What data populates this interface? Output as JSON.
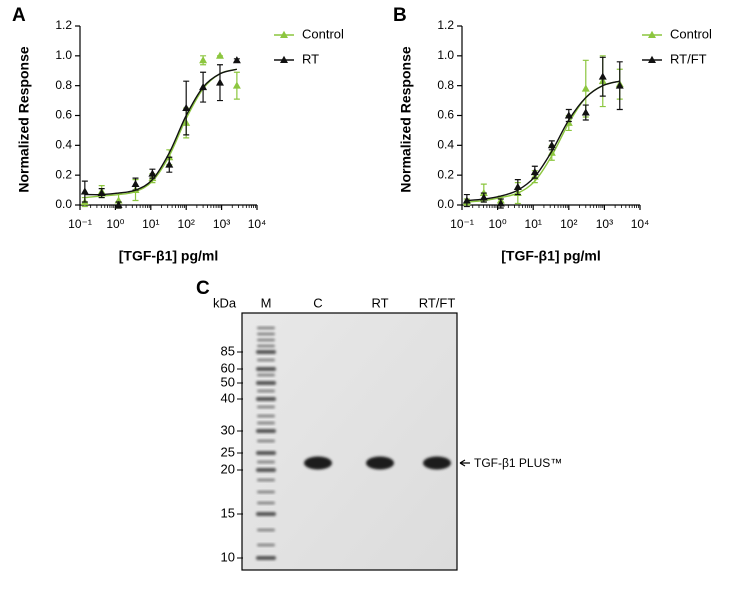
{
  "chart_data": [
    {
      "type": "line",
      "panel_label": "A",
      "x_label": "[TGF-β1] pg/ml",
      "y_label": "Normalized Response",
      "log_x": true,
      "x": [
        0.137,
        0.41,
        1.23,
        3.7,
        11.1,
        33.3,
        100,
        300,
        900,
        2700
      ],
      "xlim": [
        0.1,
        10000
      ],
      "xticks": [
        {
          "value": 0.1,
          "label": "10⁻¹"
        },
        {
          "value": 1,
          "label": "10⁰"
        },
        {
          "value": 10,
          "label": "10¹"
        },
        {
          "value": 100,
          "label": "10²"
        },
        {
          "value": 1000,
          "label": "10³"
        },
        {
          "value": 10000,
          "label": "10⁴"
        }
      ],
      "ylim": [
        0,
        1.2
      ],
      "yticks": [
        {
          "value": 0,
          "label": "0.0"
        },
        0.2,
        0.4,
        0.6,
        0.8,
        {
          "value": 1,
          "label": "1.0"
        },
        1.2
      ],
      "series": [
        {
          "name": "Control",
          "color": "#8cc63f",
          "values": [
            0.02,
            0.09,
            0.03,
            0.1,
            0.18,
            0.32,
            0.55,
            0.97,
            1.0,
            0.8
          ],
          "errors": [
            0.03,
            0.04,
            0.05,
            0.07,
            0.03,
            0.05,
            0.1,
            0.03,
            0,
            0.09
          ],
          "fit": [
            0.05,
            0.06,
            0.07,
            0.09,
            0.16,
            0.33,
            0.58,
            0.78,
            0.88,
            0.91
          ]
        },
        {
          "name": "RT",
          "color": "#111111",
          "values": [
            0.09,
            0.08,
            0.0,
            0.14,
            0.21,
            0.27,
            0.65,
            0.79,
            0.82,
            0.97
          ],
          "errors": [
            0.07,
            0.03,
            0.02,
            0.04,
            0.03,
            0.05,
            0.18,
            0.1,
            0.12,
            0.01
          ],
          "fit": [
            0.07,
            0.07,
            0.08,
            0.1,
            0.17,
            0.35,
            0.6,
            0.79,
            0.88,
            0.91
          ]
        }
      ]
    },
    {
      "type": "line",
      "panel_label": "B",
      "x_label": "[TGF-β1] pg/ml",
      "y_label": "Normalized Response",
      "log_x": true,
      "x": [
        0.137,
        0.41,
        1.23,
        3.7,
        11.1,
        33.3,
        100,
        300,
        900,
        2700
      ],
      "xlim": [
        0.1,
        10000
      ],
      "xticks": [
        {
          "value": 0.1,
          "label": "10⁻¹"
        },
        {
          "value": 1,
          "label": "10⁰"
        },
        {
          "value": 10,
          "label": "10¹"
        },
        {
          "value": 100,
          "label": "10²"
        },
        {
          "value": 1000,
          "label": "10³"
        },
        {
          "value": 10000,
          "label": "10⁴"
        }
      ],
      "ylim": [
        0,
        1.2
      ],
      "yticks": [
        {
          "value": 0,
          "label": "0.0"
        },
        0.2,
        0.4,
        0.6,
        0.8,
        {
          "value": 1,
          "label": "1.0"
        },
        1.2
      ],
      "series": [
        {
          "name": "Control",
          "color": "#8cc63f",
          "values": [
            0.02,
            0.08,
            0.03,
            0.08,
            0.19,
            0.35,
            0.55,
            0.78,
            0.83,
            0.81
          ],
          "errors": [
            0.02,
            0.06,
            0.03,
            0.07,
            0.04,
            0.05,
            0.05,
            0.19,
            0.17,
            0.1
          ],
          "fit": [
            0.02,
            0.03,
            0.05,
            0.08,
            0.16,
            0.33,
            0.55,
            0.72,
            0.8,
            0.83
          ]
        },
        {
          "name": "RT/FT",
          "color": "#111111",
          "values": [
            0.03,
            0.05,
            0.01,
            0.12,
            0.22,
            0.4,
            0.6,
            0.62,
            0.86,
            0.8
          ],
          "errors": [
            0.04,
            0.03,
            0.03,
            0.05,
            0.04,
            0.03,
            0.04,
            0.05,
            0.13,
            0.16
          ],
          "fit": [
            0.03,
            0.04,
            0.06,
            0.1,
            0.19,
            0.36,
            0.57,
            0.72,
            0.8,
            0.83
          ]
        }
      ]
    }
  ],
  "gel": {
    "panel_label": "C",
    "unit_label": "kDa",
    "lanes": [
      "M",
      "C",
      "RT",
      "RT/FT"
    ],
    "marker_sizes": [
      85,
      60,
      50,
      40,
      30,
      25,
      20,
      15,
      10
    ],
    "band_label": "TGF-β1 PLUS™"
  }
}
